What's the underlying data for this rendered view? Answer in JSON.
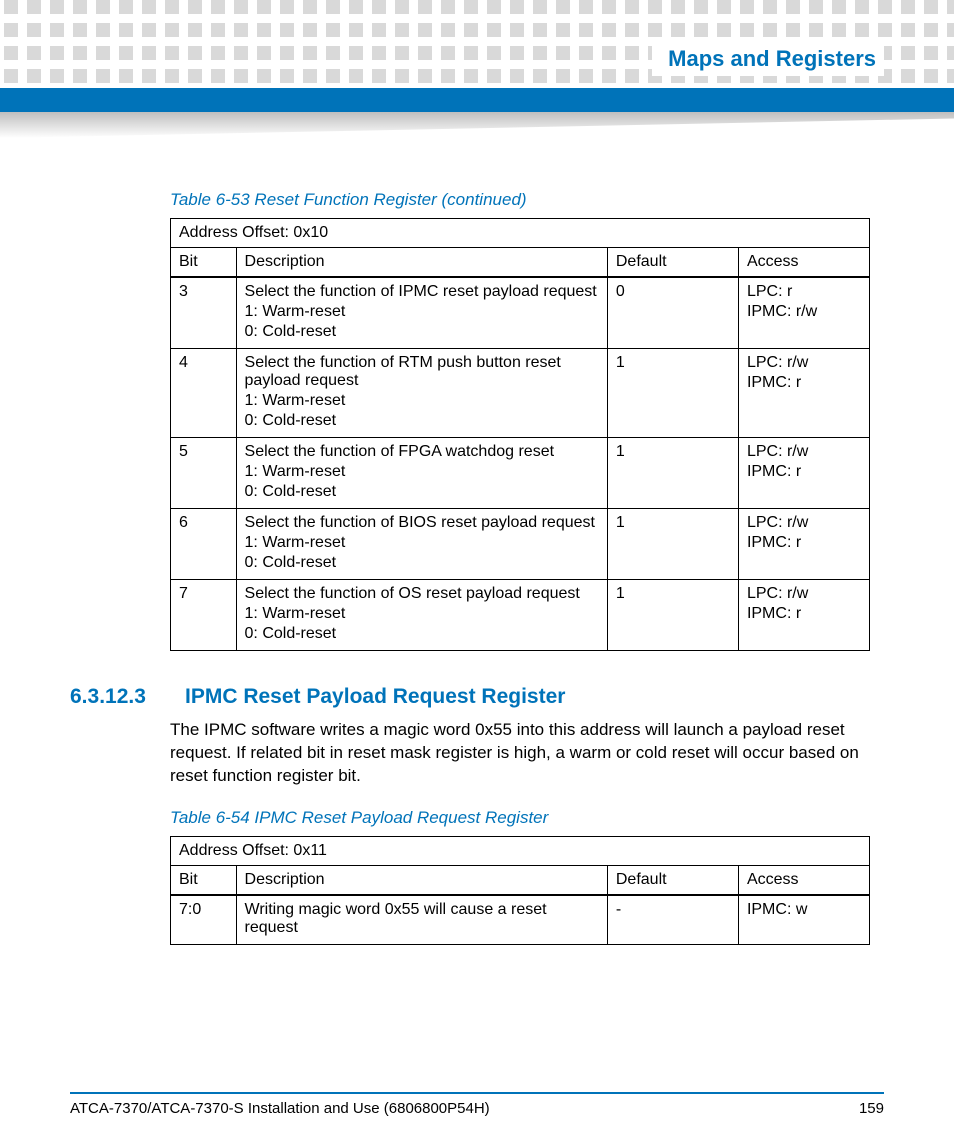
{
  "colors": {
    "brand_blue": "#0073b9",
    "dot_gray": "#d9d9d9",
    "wedge_gray_top": "#bfbfbf",
    "text_black": "#000000",
    "background": "#ffffff"
  },
  "header": {
    "chapter_title": "Maps and Registers"
  },
  "table1": {
    "caption": "Table 6-53 Reset Function Register  (continued)",
    "address_line": "Address Offset: 0x10",
    "columns": {
      "bit": "Bit",
      "desc": "Description",
      "def": "Default",
      "acc": "Access"
    },
    "rows": [
      {
        "bit": "3",
        "desc": [
          "Select the function of IPMC reset payload request",
          "1: Warm-reset",
          "0: Cold-reset"
        ],
        "def": "0",
        "acc": [
          "LPC: r",
          "IPMC: r/w"
        ]
      },
      {
        "bit": "4",
        "desc": [
          "Select the function of RTM push button reset payload request",
          "1: Warm-reset",
          "0: Cold-reset"
        ],
        "def": "1",
        "acc": [
          "LPC: r/w",
          "IPMC: r"
        ]
      },
      {
        "bit": "5",
        "desc": [
          "Select the function of FPGA watchdog reset",
          "1: Warm-reset",
          "0: Cold-reset"
        ],
        "def": "1",
        "acc": [
          "LPC: r/w",
          "IPMC: r"
        ]
      },
      {
        "bit": "6",
        "desc": [
          "Select the function of BIOS reset payload request",
          "1: Warm-reset",
          "0: Cold-reset"
        ],
        "def": "1",
        "acc": [
          "LPC: r/w",
          "IPMC: r"
        ]
      },
      {
        "bit": "7",
        "desc": [
          "Select the function of OS reset payload request",
          "1: Warm-reset",
          "0: Cold-reset"
        ],
        "def": "1",
        "acc": [
          "LPC: r/w",
          "IPMC: r"
        ]
      }
    ]
  },
  "section": {
    "number": "6.3.12.3",
    "title": "IPMC Reset Payload Request Register",
    "body": "The IPMC software writes a magic word 0x55 into this address will launch a payload reset request. If related bit in reset mask register is high, a warm or cold reset will occur based on reset function register bit."
  },
  "table2": {
    "caption": "Table 6-54 IPMC Reset Payload Request Register",
    "address_line": "Address Offset: 0x11",
    "columns": {
      "bit": "Bit",
      "desc": "Description",
      "def": "Default",
      "acc": "Access"
    },
    "rows": [
      {
        "bit": "7:0",
        "desc": [
          "Writing magic word 0x55 will cause a reset request"
        ],
        "def": "-",
        "acc": [
          "IPMC: w"
        ]
      }
    ]
  },
  "footer": {
    "doc_title": "ATCA-7370/ATCA-7370-S Installation and Use (6806800P54H)",
    "page_number": "159"
  },
  "typography": {
    "caption_fontsize": 17,
    "body_fontsize": 17,
    "table_fontsize": 16,
    "heading_fontsize": 21,
    "chapter_fontsize": 22,
    "footer_fontsize": 15
  }
}
